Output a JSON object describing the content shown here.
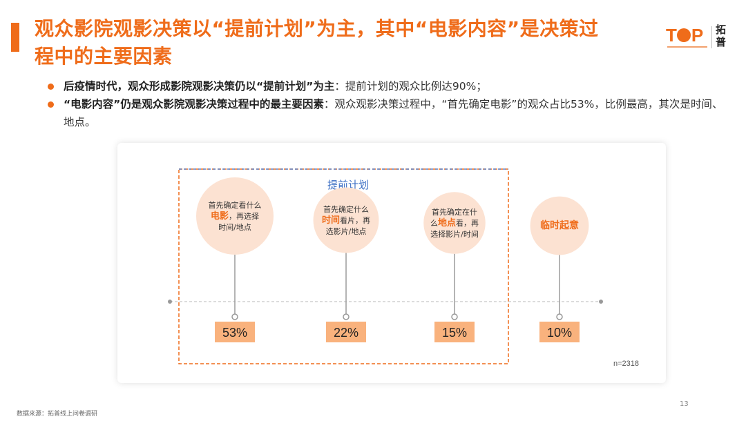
{
  "header": {
    "title_line1": "观众影院观影决策以“提前计划”为主，其中“电影内容”是决策过",
    "title_line2": "程中的主要因素",
    "logo_word_left": "T",
    "logo_word_right": "P",
    "logo_cn": "拓普"
  },
  "bullets": [
    {
      "bold": "后疫情时代，观众形成影院观影决策仍以“提前计划”为主",
      "rest": "：提前计划的观众比例达90%；"
    },
    {
      "bold": "“电影内容”仍是观众影院观影决策过程中的最主要因素",
      "rest": "：观众观影决策过程中，“首先确定电影”的观众占比53%，比例最高，其次是时间、地点。"
    }
  ],
  "chart_data": {
    "type": "bar",
    "group_label": "提前计划",
    "sample_size": "n=2318",
    "categories": [
      {
        "lines": [
          [
            "首先确定看什么",
            false
          ],
          [
            "电影",
            true,
            "，再选择"
          ],
          [
            "时间/地点",
            false
          ]
        ],
        "value": 53,
        "value_label": "53%"
      },
      {
        "lines": [
          [
            "首先确定什么",
            false
          ],
          [
            "时间",
            true,
            "看片，再"
          ],
          [
            "选影片/地点",
            false
          ]
        ],
        "value": 22,
        "value_label": "22%"
      },
      {
        "lines": [
          [
            "首先确定在什",
            false
          ],
          [
            "么",
            false,
            "",
            "地点",
            "看，再"
          ],
          [
            "选择影片/时间",
            false
          ]
        ],
        "value": 15,
        "value_label": "15%"
      },
      {
        "lines": [
          [
            "临时起意",
            true
          ]
        ],
        "value": 10,
        "value_label": "10%"
      }
    ],
    "colors": {
      "accent": "#ef6c1a",
      "bubble": "#fce2d2",
      "label_bg": "#f9b27d",
      "dashed_blue": "#5b82c6",
      "dashed_orange": "#ef6c1a"
    }
  },
  "footer": {
    "source": "数据来源：拓普线上问卷调研",
    "page_number": "13"
  }
}
